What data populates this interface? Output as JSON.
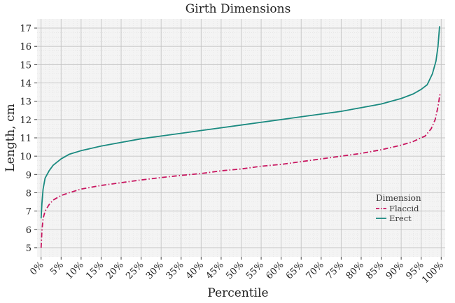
{
  "chart_data": {
    "type": "line",
    "title": "Girth Dimensions",
    "xlabel": "Percentile",
    "ylabel": "Length, cm",
    "x_ticks": [
      0,
      5,
      10,
      15,
      20,
      25,
      30,
      35,
      40,
      45,
      50,
      55,
      60,
      65,
      70,
      75,
      80,
      85,
      90,
      95,
      100
    ],
    "x_tick_labels": [
      "0%",
      "5%",
      "10%",
      "15%",
      "20%",
      "25%",
      "30%",
      "35%",
      "40%",
      "45%",
      "50%",
      "55%",
      "60%",
      "65%",
      "70%",
      "75%",
      "80%",
      "85%",
      "90%",
      "95%",
      "100%"
    ],
    "xlim": [
      -1,
      101
    ],
    "y_ticks": [
      5,
      6,
      7,
      8,
      9,
      10,
      11,
      12,
      13,
      14,
      15,
      16,
      17
    ],
    "ylim": [
      4.5,
      17.5
    ],
    "grid": true,
    "legend": {
      "title": "Dimension",
      "position": "right"
    },
    "series": [
      {
        "name": "Flaccid",
        "color": "#c8155f",
        "dash": "dashdot",
        "points": [
          [
            0,
            5.0
          ],
          [
            0.2,
            5.9
          ],
          [
            0.5,
            6.6
          ],
          [
            1,
            7.0
          ],
          [
            2,
            7.35
          ],
          [
            3,
            7.6
          ],
          [
            5,
            7.85
          ],
          [
            7,
            8.0
          ],
          [
            10,
            8.2
          ],
          [
            15,
            8.4
          ],
          [
            20,
            8.55
          ],
          [
            25,
            8.7
          ],
          [
            30,
            8.83
          ],
          [
            35,
            8.95
          ],
          [
            40,
            9.05
          ],
          [
            45,
            9.2
          ],
          [
            50,
            9.3
          ],
          [
            55,
            9.45
          ],
          [
            60,
            9.55
          ],
          [
            65,
            9.7
          ],
          [
            70,
            9.85
          ],
          [
            75,
            10.0
          ],
          [
            80,
            10.15
          ],
          [
            85,
            10.35
          ],
          [
            90,
            10.6
          ],
          [
            93,
            10.8
          ],
          [
            96,
            11.1
          ],
          [
            97.5,
            11.5
          ],
          [
            98.5,
            12.0
          ],
          [
            99.2,
            12.7
          ],
          [
            99.7,
            13.4
          ]
        ]
      },
      {
        "name": "Erect",
        "color": "#1a8a80",
        "dash": "solid",
        "points": [
          [
            0,
            6.6
          ],
          [
            0.2,
            7.4
          ],
          [
            0.5,
            8.2
          ],
          [
            1,
            8.8
          ],
          [
            2,
            9.2
          ],
          [
            3,
            9.5
          ],
          [
            5,
            9.85
          ],
          [
            7,
            10.1
          ],
          [
            10,
            10.3
          ],
          [
            15,
            10.55
          ],
          [
            20,
            10.75
          ],
          [
            25,
            10.95
          ],
          [
            30,
            11.1
          ],
          [
            35,
            11.25
          ],
          [
            40,
            11.4
          ],
          [
            45,
            11.55
          ],
          [
            50,
            11.7
          ],
          [
            55,
            11.85
          ],
          [
            60,
            12.0
          ],
          [
            65,
            12.15
          ],
          [
            70,
            12.3
          ],
          [
            75,
            12.45
          ],
          [
            80,
            12.65
          ],
          [
            85,
            12.85
          ],
          [
            90,
            13.15
          ],
          [
            93,
            13.4
          ],
          [
            95,
            13.65
          ],
          [
            96.5,
            13.9
          ],
          [
            97.8,
            14.5
          ],
          [
            98.7,
            15.2
          ],
          [
            99.2,
            16.0
          ],
          [
            99.6,
            17.1
          ]
        ]
      }
    ]
  }
}
